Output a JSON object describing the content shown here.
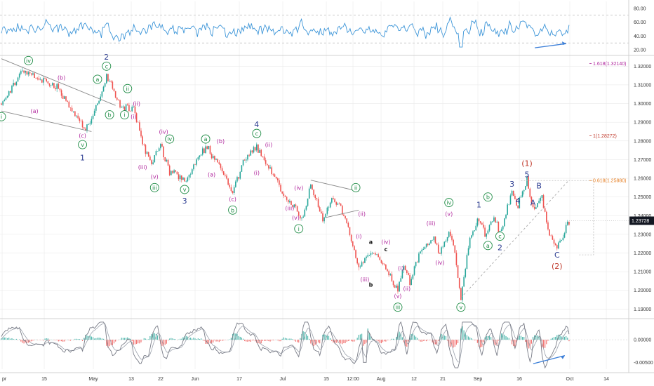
{
  "colors": {
    "up": "#26a69a",
    "down": "#ef5350",
    "rsi": "#3c95d8",
    "osc": "#787b86",
    "green": "#1e8c45",
    "magenta": "#b0269d",
    "navy": "#2c3c91",
    "red": "#c0392b",
    "blue_arrow": "#3c7fd8",
    "grid": "#e6e6e6",
    "price_box": "#131722"
  },
  "chart_data": [
    {
      "type": "line",
      "panel": "rsi",
      "y_ticks": [
        "80.00",
        "60.00",
        "40.00",
        "20.00"
      ],
      "ylim": [
        15,
        90
      ],
      "levels": [
        70,
        30
      ],
      "mean": 50,
      "amplitude": 12,
      "min_point": {
        "x": "Sep 1",
        "y": 24
      },
      "end_annotation": "rising-arrow-right"
    },
    {
      "type": "candlestick",
      "panel": "price",
      "y_ticks": [
        "1.32000",
        "1.31000",
        "1.30000",
        "1.29000",
        "1.28000",
        "1.27000",
        "1.26000",
        "1.25000",
        "1.24000",
        "1.23000",
        "1.22000",
        "1.21000",
        "1.20000",
        "1.19000"
      ],
      "ylim": [
        1.186,
        1.325
      ],
      "last_price": "1.23728",
      "x_ticks": [
        "pr",
        "15",
        "May",
        "13",
        "22",
        "Jun",
        "17",
        "Jul",
        "15",
        "12:00",
        "Aug",
        "12",
        "21",
        "Sep",
        "16",
        "Oct",
        "14"
      ],
      "price_path": [
        [
          "Apr 1",
          1.3
        ],
        [
          "Apr 8",
          1.318
        ],
        [
          "Apr 20",
          1.308
        ],
        [
          "Apr 29",
          1.286
        ],
        [
          "May 3",
          1.299
        ],
        [
          "May 6",
          1.316
        ],
        [
          "May 9",
          1.303
        ],
        [
          "May 11",
          1.298
        ],
        [
          "May 15",
          1.297
        ],
        [
          "May 18",
          1.278
        ],
        [
          "May 21",
          1.267
        ],
        [
          "May 24",
          1.278
        ],
        [
          "May 27",
          1.264
        ],
        [
          "Jun 1",
          1.259
        ],
        [
          "Jun 8",
          1.277
        ],
        [
          "Jun 12",
          1.269
        ],
        [
          "Jun 17",
          1.253
        ],
        [
          "Jun 21",
          1.271
        ],
        [
          "Jun 25",
          1.276
        ],
        [
          "Jul 2",
          1.258
        ],
        [
          "Jul 4",
          1.25
        ],
        [
          "Jul 8",
          1.245
        ],
        [
          "Jul 10",
          1.237
        ],
        [
          "Jul 13",
          1.256
        ],
        [
          "Jul 17",
          1.239
        ],
        [
          "Jul 20",
          1.249
        ],
        [
          "Jul 23",
          1.245
        ],
        [
          "Jul 26",
          1.23
        ],
        [
          "Jul 29",
          1.212
        ],
        [
          "Aug 2",
          1.22
        ],
        [
          "Aug 5",
          1.218
        ],
        [
          "Aug 8",
          1.208
        ],
        [
          "Aug 11",
          1.2
        ],
        [
          "Aug 13",
          1.214
        ],
        [
          "Aug 15",
          1.204
        ],
        [
          "Aug 18",
          1.22
        ],
        [
          "Aug 23",
          1.227
        ],
        [
          "Aug 25",
          1.218
        ],
        [
          "Aug 28",
          1.232
        ],
        [
          "Aug 30",
          1.22
        ],
        [
          "Sep 1",
          1.196
        ],
        [
          "Sep 4",
          1.228
        ],
        [
          "Sep 7",
          1.238
        ],
        [
          "Sep 9",
          1.229
        ],
        [
          "Sep 12",
          1.24
        ],
        [
          "Sep 14",
          1.231
        ],
        [
          "Sep 18",
          1.253
        ],
        [
          "Sep 20",
          1.246
        ],
        [
          "Sep 23",
          1.258
        ],
        [
          "Sep 25",
          1.243
        ],
        [
          "Sep 28",
          1.25
        ],
        [
          "Sep 30",
          1.232
        ],
        [
          "Oct 3",
          1.224
        ],
        [
          "Oct 5",
          1.229
        ],
        [
          "Oct 7",
          1.2373
        ]
      ],
      "fib_levels": [
        {
          "label": "1.618(1.32140)",
          "value": 1.3214,
          "color": "#b0269d"
        },
        {
          "label": "1(1.28272)",
          "value": 1.28272,
          "color": "#c0392b"
        },
        {
          "label": "0.618(1.25880)",
          "value": 1.2588,
          "color": "#e67e22"
        }
      ],
      "trendlines": [
        {
          "from": [
            "Apr 1",
            1.324
          ],
          "to": [
            "May 9",
            1.299
          ],
          "color": "#888888"
        },
        {
          "from": [
            "Apr 1",
            1.296
          ],
          "to": [
            "May 1",
            1.285
          ],
          "color": "#888888"
        },
        {
          "from": [
            "Jul 13",
            1.259
          ],
          "to": [
            "Jul 29",
            1.253
          ],
          "color": "#888888"
        },
        {
          "from": [
            "Jul 18",
            1.239
          ],
          "to": [
            "Jul 29",
            1.243
          ],
          "color": "#888888"
        },
        {
          "from": [
            "Sep 1",
            1.196
          ],
          "to": [
            "Oct 7",
            1.259
          ],
          "color": "#aaaaaa",
          "dashed": true
        }
      ],
      "projection_box": {
        "from": [
          "Sep 21",
          1.2588
        ],
        "to": [
          "Oct 7",
          1.219
        ],
        "color": "#bbbbbb"
      },
      "wave_labels": [
        {
          "t": "iv",
          "x": "Apr 10",
          "y": 1.323,
          "style": "circle",
          "color": "green"
        },
        {
          "t": "(b)",
          "x": "Apr 21",
          "y": 1.314,
          "style": "text",
          "color": "magenta"
        },
        {
          "t": "(a)",
          "x": "Apr 12",
          "y": 1.296,
          "style": "text",
          "color": "magenta"
        },
        {
          "t": "i",
          "x": "Apr 1",
          "y": 1.293,
          "style": "circle",
          "color": "green"
        },
        {
          "t": "(c)",
          "x": "Apr 28",
          "y": 1.283,
          "style": "text",
          "color": "magenta"
        },
        {
          "t": "v",
          "x": "Apr 28",
          "y": 1.278,
          "style": "circle",
          "color": "green"
        },
        {
          "t": "1",
          "x": "Apr 28",
          "y": 1.271,
          "style": "big",
          "color": "navy"
        },
        {
          "t": "2",
          "x": "May 6",
          "y": 1.325,
          "style": "big",
          "color": "navy"
        },
        {
          "t": "c",
          "x": "May 6",
          "y": 1.32,
          "style": "circle",
          "color": "green"
        },
        {
          "t": "a",
          "x": "May 3",
          "y": 1.313,
          "style": "circle",
          "color": "green"
        },
        {
          "t": "b",
          "x": "May 7",
          "y": 1.294,
          "style": "circle",
          "color": "green"
        },
        {
          "t": "ii",
          "x": "May 13",
          "y": 1.308,
          "style": "circle",
          "color": "green"
        },
        {
          "t": "i",
          "x": "May 12",
          "y": 1.294,
          "style": "circle",
          "color": "green"
        },
        {
          "t": "(ii)",
          "x": "May 16",
          "y": 1.3,
          "style": "text",
          "color": "magenta"
        },
        {
          "t": "(i)",
          "x": "May 15",
          "y": 1.293,
          "style": "text",
          "color": "magenta"
        },
        {
          "t": "(iv)",
          "x": "May 25",
          "y": 1.285,
          "style": "text",
          "color": "magenta"
        },
        {
          "t": "(iii)",
          "x": "May 18",
          "y": 1.266,
          "style": "text",
          "color": "magenta"
        },
        {
          "t": "(v)",
          "x": "May 22",
          "y": 1.261,
          "style": "text",
          "color": "magenta"
        },
        {
          "t": "iii",
          "x": "May 22",
          "y": 1.255,
          "style": "circle",
          "color": "green"
        },
        {
          "t": "iv",
          "x": "May 27",
          "y": 1.281,
          "style": "circle",
          "color": "green"
        },
        {
          "t": "v",
          "x": "Jun 1",
          "y": 1.254,
          "style": "circle",
          "color": "green"
        },
        {
          "t": "3",
          "x": "Jun 1",
          "y": 1.248,
          "style": "big",
          "color": "navy"
        },
        {
          "t": "a",
          "x": "Jun 8",
          "y": 1.281,
          "style": "circle",
          "color": "green"
        },
        {
          "t": "(b)",
          "x": "Jun 13",
          "y": 1.28,
          "style": "text",
          "color": "magenta"
        },
        {
          "t": "(a)",
          "x": "Jun 10",
          "y": 1.262,
          "style": "text",
          "color": "magenta"
        },
        {
          "t": "(c)",
          "x": "Jun 17",
          "y": 1.249,
          "style": "text",
          "color": "magenta"
        },
        {
          "t": "b",
          "x": "Jun 17",
          "y": 1.243,
          "style": "circle",
          "color": "green"
        },
        {
          "t": "4",
          "x": "Jun 25",
          "y": 1.289,
          "style": "big",
          "color": "navy"
        },
        {
          "t": "c",
          "x": "Jun 25",
          "y": 1.284,
          "style": "circle",
          "color": "green"
        },
        {
          "t": "(ii)",
          "x": "Jun 29",
          "y": 1.278,
          "style": "text",
          "color": "magenta"
        },
        {
          "t": "(i)",
          "x": "Jun 25",
          "y": 1.263,
          "style": "text",
          "color": "magenta"
        },
        {
          "t": "(iv)",
          "x": "Jul 9",
          "y": 1.255,
          "style": "text",
          "color": "magenta"
        },
        {
          "t": "(iii)",
          "x": "Jul 6",
          "y": 1.244,
          "style": "text",
          "color": "magenta"
        },
        {
          "t": "(v)",
          "x": "Jul 8",
          "y": 1.239,
          "style": "text",
          "color": "magenta"
        },
        {
          "t": "i",
          "x": "Jul 9",
          "y": 1.233,
          "style": "circle",
          "color": "green"
        },
        {
          "t": "ii",
          "x": "Jul 28",
          "y": 1.255,
          "style": "circle",
          "color": "green"
        },
        {
          "t": "(ii)",
          "x": "Jul 30",
          "y": 1.241,
          "style": "text",
          "color": "magenta"
        },
        {
          "t": "(i)",
          "x": "Jul 29",
          "y": 1.229,
          "style": "text",
          "color": "magenta"
        },
        {
          "t": "a",
          "x": "Aug 2",
          "y": 1.226,
          "style": "small",
          "color": "black"
        },
        {
          "t": "(iv)",
          "x": "Aug 7",
          "y": 1.226,
          "style": "text",
          "color": "magenta"
        },
        {
          "t": "c",
          "x": "Aug 7",
          "y": 1.222,
          "style": "small",
          "color": "black"
        },
        {
          "t": "(iii)",
          "x": "Jul 31",
          "y": 1.206,
          "style": "text",
          "color": "magenta"
        },
        {
          "t": "b",
          "x": "Aug 2",
          "y": 1.203,
          "style": "small",
          "color": "black"
        },
        {
          "t": "(i)",
          "x": "Aug 12",
          "y": 1.212,
          "style": "text",
          "color": "magenta"
        },
        {
          "t": "(ii)",
          "x": "Aug 14",
          "y": 1.201,
          "style": "text",
          "color": "magenta"
        },
        {
          "t": "(v)",
          "x": "Aug 11",
          "y": 1.197,
          "style": "text",
          "color": "magenta"
        },
        {
          "t": "iii",
          "x": "Aug 11",
          "y": 1.191,
          "style": "circle",
          "color": "green"
        },
        {
          "t": "(iii)",
          "x": "Aug 22",
          "y": 1.236,
          "style": "text",
          "color": "magenta"
        },
        {
          "t": "(iv)",
          "x": "Aug 25",
          "y": 1.215,
          "style": "text",
          "color": "magenta"
        },
        {
          "t": "iv",
          "x": "Aug 28",
          "y": 1.247,
          "style": "circle",
          "color": "green"
        },
        {
          "t": "(v)",
          "x": "Aug 28",
          "y": 1.241,
          "style": "text",
          "color": "magenta"
        },
        {
          "t": "v",
          "x": "Sep 1",
          "y": 1.191,
          "style": "circle",
          "color": "green"
        },
        {
          "t": "1",
          "x": "Sep 7",
          "y": 1.246,
          "style": "big",
          "color": "navy"
        },
        {
          "t": "b",
          "x": "Sep 10",
          "y": 1.25,
          "style": "circle",
          "color": "green"
        },
        {
          "t": "a",
          "x": "Sep 10",
          "y": 1.224,
          "style": "circle",
          "color": "green"
        },
        {
          "t": "c",
          "x": "Sep 14",
          "y": 1.229,
          "style": "circle",
          "color": "green"
        },
        {
          "t": "2",
          "x": "Sep 14",
          "y": 1.223,
          "style": "big",
          "color": "navy"
        },
        {
          "t": "3",
          "x": "Sep 18",
          "y": 1.257,
          "style": "big",
          "color": "navy"
        },
        {
          "t": "4",
          "x": "Sep 20",
          "y": 1.248,
          "style": "big",
          "color": "navy"
        },
        {
          "t": "(1)",
          "x": "Sep 23",
          "y": 1.268,
          "style": "big",
          "color": "red"
        },
        {
          "t": "5",
          "x": "Sep 23",
          "y": 1.262,
          "style": "big",
          "color": "navy"
        },
        {
          "t": "B",
          "x": "Sep 27",
          "y": 1.256,
          "style": "big",
          "color": "navy"
        },
        {
          "t": "A",
          "x": "Sep 25",
          "y": 1.247,
          "style": "big",
          "color": "navy"
        },
        {
          "t": "C",
          "x": "Oct 3",
          "y": 1.219,
          "style": "big",
          "color": "navy"
        },
        {
          "t": "(2)",
          "x": "Oct 3",
          "y": 1.213,
          "style": "big",
          "color": "red"
        }
      ]
    },
    {
      "type": "line",
      "panel": "oscillator",
      "y_ticks": [
        "0.00000",
        "-0.00500"
      ],
      "ylim": [
        -0.0065,
        0.0042
      ],
      "min_point": {
        "x": "Jul 31",
        "y": -0.005
      },
      "end_annotation": "rising-arrow-right"
    }
  ]
}
